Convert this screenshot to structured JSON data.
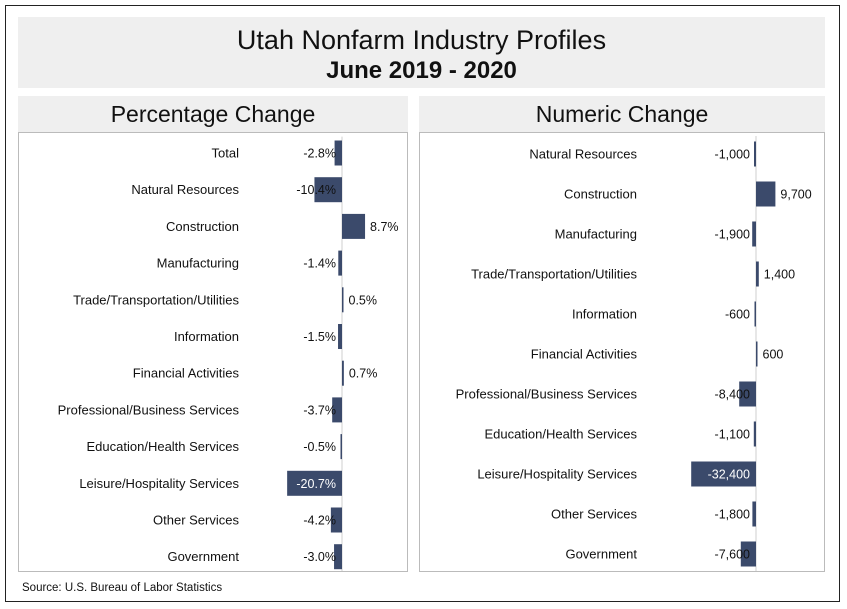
{
  "title": "Utah Nonfarm Industry Profiles",
  "subtitle": "June 2019 - 2020",
  "source": "Source: U.S. Bureau of Labor Statistics",
  "colors": {
    "bar": "#3b4a6b",
    "header_bg": "#efefef"
  },
  "chart_data": [
    {
      "type": "bar",
      "orientation": "horizontal",
      "title": "Percentage Change",
      "categories": [
        "Total",
        "Natural Resources",
        "Construction",
        "Manufacturing",
        "Trade/Transportation/Utilities",
        "Information",
        "Financial Activities",
        "Professional/Business Services",
        "Education/Health Services",
        "Leisure/Hospitality Services",
        "Other Services",
        "Government"
      ],
      "values": [
        -2.8,
        -10.4,
        8.7,
        -1.4,
        0.5,
        -1.5,
        0.7,
        -3.7,
        -0.5,
        -20.7,
        -4.2,
        -3.0
      ],
      "labels": [
        "-2.8%",
        "-10.4%",
        "8.7%",
        "-1.4%",
        "0.5%",
        "-1.5%",
        "0.7%",
        "-3.7%",
        "-0.5%",
        "-20.7%",
        "-4.2%",
        "-3.0%"
      ]
    },
    {
      "type": "bar",
      "orientation": "horizontal",
      "title": "Numeric Change",
      "categories": [
        "Natural Resources",
        "Construction",
        "Manufacturing",
        "Trade/Transportation/Utilities",
        "Information",
        "Financial Activities",
        "Professional/Business Services",
        "Education/Health Services",
        "Leisure/Hospitality Services",
        "Other Services",
        "Government"
      ],
      "values": [
        -1000,
        9700,
        -1900,
        1400,
        -600,
        600,
        -8400,
        -1100,
        -32400,
        -1800,
        -7600
      ],
      "labels": [
        "-1,000",
        "9,700",
        "-1,900",
        "1,400",
        "-600",
        "600",
        "-8,400",
        "-1,100",
        "-32,400",
        "-1,800",
        "-7,600"
      ]
    }
  ]
}
